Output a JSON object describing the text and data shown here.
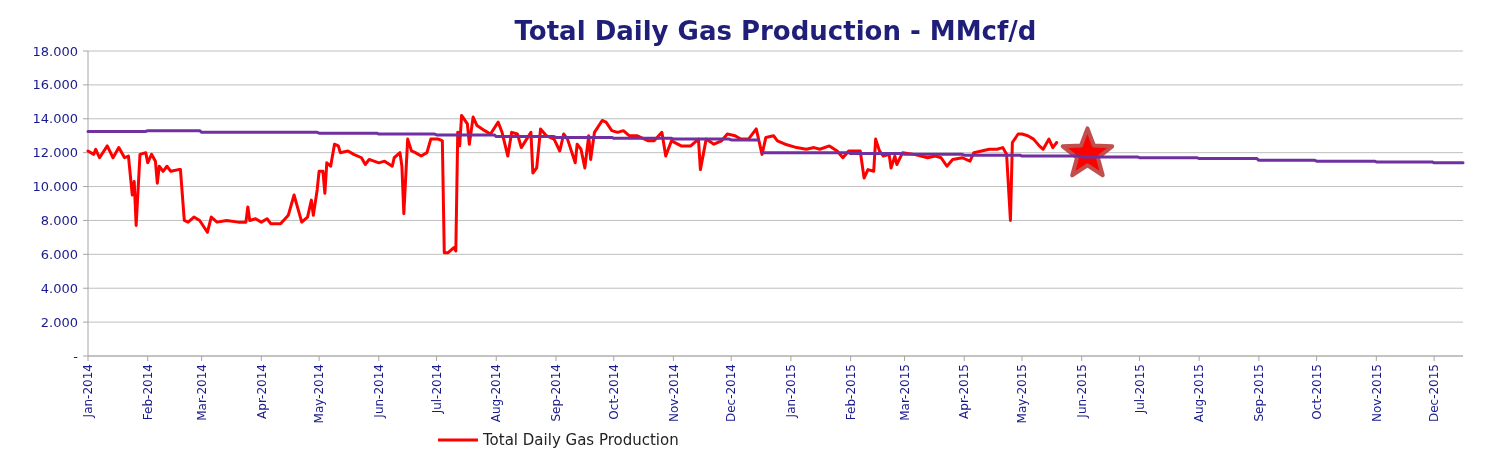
{
  "chart_data": {
    "type": "line",
    "title": "Total Daily Gas Production - MMcf/d",
    "xlim": [
      "2014-01-01",
      "2015-12-16"
    ],
    "xticks": [
      {
        "value": "2014-01-01",
        "label": "Jan-2014"
      },
      {
        "value": "2014-02-01",
        "label": "Feb-2014"
      },
      {
        "value": "2014-03-01",
        "label": "Mar-2014"
      },
      {
        "value": "2014-04-01",
        "label": "Apr-2014"
      },
      {
        "value": "2014-05-01",
        "label": "May-2014"
      },
      {
        "value": "2014-06-01",
        "label": "Jun-2014"
      },
      {
        "value": "2014-07-01",
        "label": "Jul-2014"
      },
      {
        "value": "2014-08-01",
        "label": "Aug-2014"
      },
      {
        "value": "2014-09-01",
        "label": "Sep-2014"
      },
      {
        "value": "2014-10-01",
        "label": "Oct-2014"
      },
      {
        "value": "2014-11-01",
        "label": "Nov-2014"
      },
      {
        "value": "2014-12-01",
        "label": "Dec-2014"
      },
      {
        "value": "2015-01-01",
        "label": "Jan-2015"
      },
      {
        "value": "2015-02-01",
        "label": "Feb-2015"
      },
      {
        "value": "2015-03-01",
        "label": "Mar-2015"
      },
      {
        "value": "2015-04-01",
        "label": "Apr-2015"
      },
      {
        "value": "2015-05-01",
        "label": "May-2015"
      },
      {
        "value": "2015-06-01",
        "label": "Jun-2015"
      },
      {
        "value": "2015-07-01",
        "label": "Jul-2015"
      },
      {
        "value": "2015-08-01",
        "label": "Aug-2015"
      },
      {
        "value": "2015-09-01",
        "label": "Sep-2015"
      },
      {
        "value": "2015-10-01",
        "label": "Oct-2015"
      },
      {
        "value": "2015-11-01",
        "label": "Nov-2015"
      },
      {
        "value": "2015-12-01",
        "label": "Dec-2015"
      }
    ],
    "ylim": [
      0,
      18
    ],
    "yticks": [
      {
        "value": 0,
        "label": "-"
      },
      {
        "value": 2,
        "label": "2.000"
      },
      {
        "value": 4,
        "label": "4.000"
      },
      {
        "value": 6,
        "label": "6.000"
      },
      {
        "value": 8,
        "label": "8.000"
      },
      {
        "value": 10,
        "label": "10.000"
      },
      {
        "value": 12,
        "label": "12.000"
      },
      {
        "value": 14,
        "label": "14.000"
      },
      {
        "value": 16,
        "label": "16.000"
      },
      {
        "value": 18,
        "label": "18.000"
      }
    ],
    "grid": "y",
    "legend": "bottom",
    "series": [
      {
        "name": "Total Daily Gas Production",
        "color": "#ff0000",
        "x": [
          "2014-01-01",
          "2014-01-04",
          "2014-01-05",
          "2014-01-07",
          "2014-01-11",
          "2014-01-14",
          "2014-01-17",
          "2014-01-20",
          "2014-01-22",
          "2014-01-24",
          "2014-01-25",
          "2014-01-26",
          "2014-01-28",
          "2014-01-31",
          "2014-02-01",
          "2014-02-03",
          "2014-02-05",
          "2014-02-06",
          "2014-02-07",
          "2014-02-09",
          "2014-02-11",
          "2014-02-13",
          "2014-02-17",
          "2014-02-18",
          "2014-02-20",
          "2014-02-22",
          "2014-02-25",
          "2014-02-28",
          "2014-03-04",
          "2014-03-06",
          "2014-03-09",
          "2014-03-14",
          "2014-03-20",
          "2014-03-24",
          "2014-03-25",
          "2014-03-26",
          "2014-03-29",
          "2014-04-01",
          "2014-04-04",
          "2014-04-06",
          "2014-04-11",
          "2014-04-15",
          "2014-04-18",
          "2014-04-20",
          "2014-04-22",
          "2014-04-25",
          "2014-04-27",
          "2014-04-28",
          "2014-04-30",
          "2014-05-01",
          "2014-05-03",
          "2014-05-04",
          "2014-05-05",
          "2014-05-07",
          "2014-05-09",
          "2014-05-11",
          "2014-05-12",
          "2014-05-16",
          "2014-05-19",
          "2014-05-23",
          "2014-05-25",
          "2014-05-27",
          "2014-06-01",
          "2014-06-04",
          "2014-06-08",
          "2014-06-09",
          "2014-06-12",
          "2014-06-13",
          "2014-06-14",
          "2014-06-16",
          "2014-06-18",
          "2014-06-20",
          "2014-06-23",
          "2014-06-26",
          "2014-06-28",
          "2014-07-02",
          "2014-07-04",
          "2014-07-05",
          "2014-07-07",
          "2014-07-10",
          "2014-07-11",
          "2014-07-12",
          "2014-07-13",
          "2014-07-14",
          "2014-07-17",
          "2014-07-18",
          "2014-07-20",
          "2014-07-22",
          "2014-07-26",
          "2014-07-29",
          "2014-08-02",
          "2014-08-04",
          "2014-08-07",
          "2014-08-09",
          "2014-08-12",
          "2014-08-14",
          "2014-08-19",
          "2014-08-20",
          "2014-08-22",
          "2014-08-24",
          "2014-08-27",
          "2014-08-31",
          "2014-09-03",
          "2014-09-05",
          "2014-09-07",
          "2014-09-11",
          "2014-09-12",
          "2014-09-14",
          "2014-09-16",
          "2014-09-18",
          "2014-09-19",
          "2014-09-21",
          "2014-09-25",
          "2014-09-27",
          "2014-09-30",
          "2014-10-03",
          "2014-10-06",
          "2014-10-09",
          "2014-10-13",
          "2014-10-19",
          "2014-10-22",
          "2014-10-26",
          "2014-10-28",
          "2014-10-31",
          "2014-11-05",
          "2014-11-10",
          "2014-11-14",
          "2014-11-15",
          "2014-11-18",
          "2014-11-22",
          "2014-11-26",
          "2014-11-29",
          "2014-12-03",
          "2014-12-06",
          "2014-12-10",
          "2014-12-14",
          "2014-12-17",
          "2014-12-19",
          "2014-12-23",
          "2014-12-25",
          "2014-12-29",
          "2015-01-04",
          "2015-01-09",
          "2015-01-13",
          "2015-01-16",
          "2015-01-21",
          "2015-01-25",
          "2015-01-28",
          "2015-01-31",
          "2015-02-06",
          "2015-02-08",
          "2015-02-10",
          "2015-02-13",
          "2015-02-14",
          "2015-02-16",
          "2015-02-18",
          "2015-02-21",
          "2015-02-22",
          "2015-02-24",
          "2015-02-25",
          "2015-02-28",
          "2015-03-06",
          "2015-03-13",
          "2015-03-17",
          "2015-03-20",
          "2015-03-23",
          "2015-03-26",
          "2015-03-31",
          "2015-04-04",
          "2015-04-06",
          "2015-04-14",
          "2015-04-18",
          "2015-04-21",
          "2015-04-23",
          "2015-04-25",
          "2015-04-26",
          "2015-04-29",
          "2015-05-01",
          "2015-05-04",
          "2015-05-07",
          "2015-05-10",
          "2015-05-12",
          "2015-05-15",
          "2015-05-17",
          "2015-05-19"
        ],
        "values": [
          12.1,
          11.9,
          12.2,
          11.7,
          12.4,
          11.7,
          12.3,
          11.7,
          11.8,
          9.5,
          10.3,
          7.7,
          11.9,
          12.0,
          11.4,
          11.9,
          11.5,
          10.2,
          11.2,
          10.9,
          11.2,
          10.9,
          11.0,
          11.0,
          8.0,
          7.9,
          8.2,
          8.0,
          7.3,
          8.2,
          7.9,
          8.0,
          7.9,
          7.9,
          8.8,
          8.0,
          8.1,
          7.9,
          8.1,
          7.8,
          7.8,
          8.3,
          9.5,
          8.7,
          7.9,
          8.2,
          9.2,
          8.3,
          9.8,
          10.9,
          10.9,
          9.6,
          11.4,
          11.2,
          12.5,
          12.4,
          12.0,
          12.1,
          11.9,
          11.7,
          11.3,
          11.6,
          11.4,
          11.5,
          11.2,
          11.7,
          12.0,
          11.2,
          8.4,
          12.8,
          12.1,
          12.0,
          11.8,
          12.0,
          12.8,
          12.8,
          12.7,
          6.1,
          6.1,
          6.4,
          6.2,
          13.2,
          12.4,
          14.2,
          13.7,
          12.5,
          14.1,
          13.6,
          13.3,
          13.1,
          13.8,
          13.2,
          11.8,
          13.2,
          13.1,
          12.3,
          13.2,
          10.8,
          11.1,
          13.4,
          13.0,
          12.8,
          12.1,
          13.1,
          12.8,
          11.4,
          12.5,
          12.2,
          11.1,
          13.0,
          11.6,
          13.2,
          13.9,
          13.8,
          13.3,
          13.2,
          13.3,
          13.0,
          13.0,
          12.7,
          12.7,
          13.2,
          11.8,
          12.7,
          12.4,
          12.4,
          12.8,
          11.0,
          12.8,
          12.5,
          12.7,
          13.1,
          13.0,
          12.8,
          12.8,
          13.4,
          11.9,
          12.9,
          13.0,
          12.7,
          12.5,
          12.3,
          12.2,
          12.3,
          12.2,
          12.4,
          12.1,
          11.7,
          12.1,
          12.1,
          10.5,
          11.0,
          10.9,
          12.8,
          12.1,
          11.8,
          11.9,
          11.1,
          11.8,
          11.3,
          12.0,
          11.9,
          11.7,
          11.8,
          11.7,
          11.2,
          11.6,
          11.7,
          11.5,
          12.0,
          12.2,
          12.2,
          12.3,
          11.9,
          8.0,
          12.6,
          13.1,
          13.1,
          13.0,
          12.8,
          12.4,
          12.2,
          12.8,
          12.3,
          12.6
        ]
      },
      {
        "color": "#7030a0",
        "x": [
          "2014-01-01",
          "2014-01-31",
          "2014-02-01",
          "2014-02-28",
          "2014-03-01",
          "2014-03-31",
          "2014-04-01",
          "2014-04-30",
          "2014-05-01",
          "2014-05-31",
          "2014-06-01",
          "2014-06-30",
          "2014-07-01",
          "2014-07-31",
          "2014-08-01",
          "2014-08-31",
          "2014-09-01",
          "2014-09-30",
          "2014-10-01",
          "2014-10-31",
          "2014-11-01",
          "2014-11-30",
          "2014-12-01",
          "2014-12-15",
          "2014-12-16",
          "2014-12-17",
          "2014-12-31",
          "2015-01-01",
          "2015-01-31",
          "2015-02-01",
          "2015-02-28",
          "2015-03-01",
          "2015-03-31",
          "2015-04-01",
          "2015-04-30",
          "2015-05-01",
          "2015-05-31",
          "2015-06-01",
          "2015-06-30",
          "2015-07-01",
          "2015-07-31",
          "2015-08-01",
          "2015-08-31",
          "2015-09-01",
          "2015-09-30",
          "2015-10-01",
          "2015-10-31",
          "2015-11-01",
          "2015-11-30",
          "2015-12-01",
          "2015-12-16"
        ],
        "values": [
          13.25,
          13.25,
          13.3,
          13.3,
          13.2,
          13.2,
          13.2,
          13.2,
          13.15,
          13.15,
          13.1,
          13.1,
          13.05,
          13.05,
          12.95,
          12.95,
          12.9,
          12.9,
          12.85,
          12.85,
          12.8,
          12.8,
          12.75,
          12.75,
          null,
          12.0,
          12.0,
          12.0,
          12.0,
          11.95,
          11.95,
          11.9,
          11.9,
          11.85,
          11.85,
          11.8,
          11.8,
          11.75,
          11.75,
          11.7,
          11.7,
          11.65,
          11.65,
          11.55,
          11.55,
          11.5,
          11.5,
          11.45,
          11.45,
          11.4,
          11.4
        ]
      },
      {
        "type": "scatter",
        "marker": "star",
        "color": "#ff0000",
        "x": [
          "2015-06-04"
        ],
        "values": [
          11.9
        ]
      }
    ]
  }
}
